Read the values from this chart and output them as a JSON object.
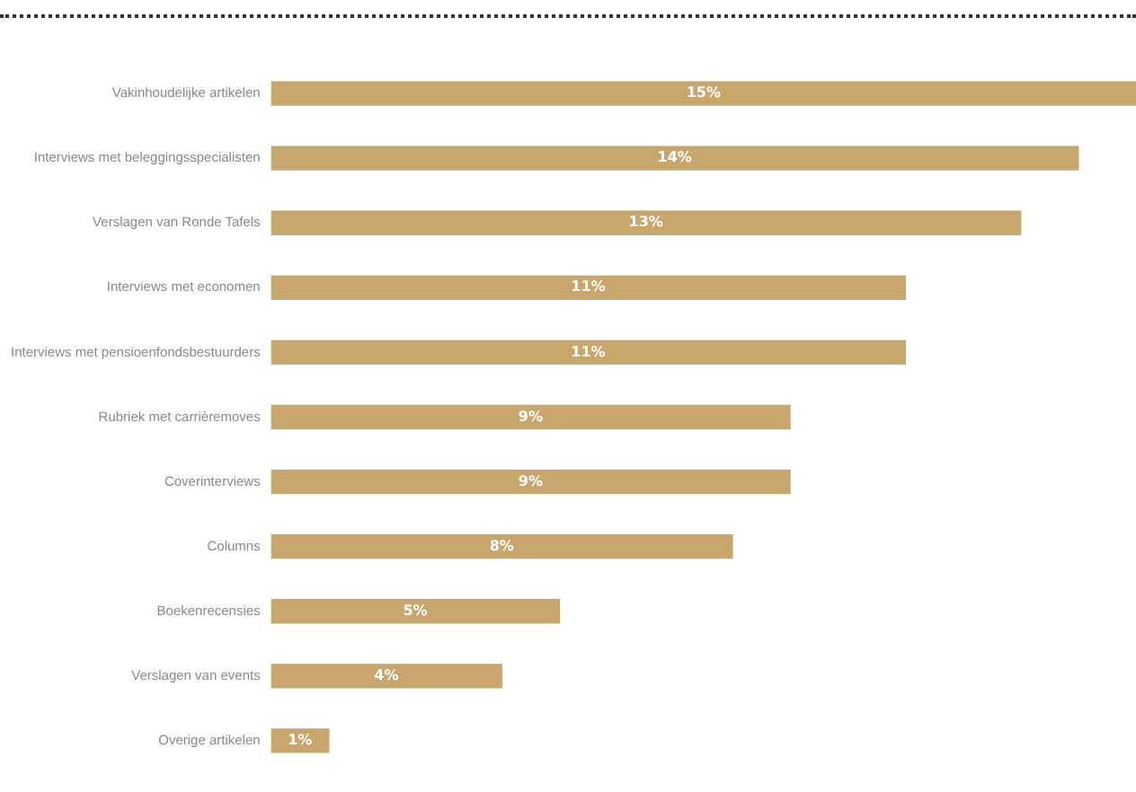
{
  "chart_data": {
    "type": "bar",
    "orientation": "horizontal",
    "categories": [
      "Vakinhoudelijke artikelen",
      "Interviews met beleggingsspecialisten",
      "Verslagen van Ronde Tafels",
      "Interviews met economen",
      "Interviews met pensioenfondsbestuurders",
      "Rubriek met carrièremoves",
      "Coverinterviews",
      "Columns",
      "Boekenrecensies",
      "Verslagen van events",
      "Overige artikelen"
    ],
    "values": [
      15,
      14,
      13,
      11,
      11,
      9,
      9,
      8,
      5,
      4,
      1
    ],
    "value_labels": [
      "15%",
      "14%",
      "13%",
      "11%",
      "11%",
      "9%",
      "9%",
      "8%",
      "5%",
      "4%",
      "1%"
    ],
    "color": "#c9a66b"
  }
}
